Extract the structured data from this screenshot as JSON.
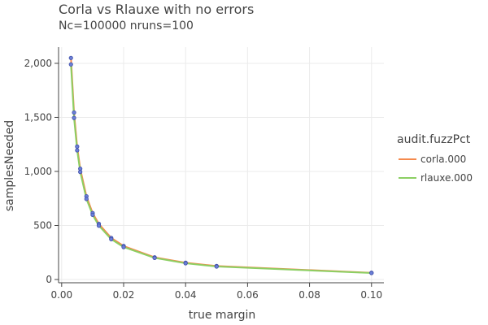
{
  "chart_data": {
    "type": "line",
    "title": "Corla vs Rlauxe with no errors",
    "subtitle": "Nc=100000 nruns=100",
    "xlabel": "true margin",
    "ylabel": "samplesNeeded",
    "xlim": [
      -0.001,
      0.104
    ],
    "ylim": [
      -30,
      2150
    ],
    "x_ticks": [
      0.0,
      0.02,
      0.04,
      0.06,
      0.08,
      0.1
    ],
    "x_tick_labels": [
      "0.00",
      "0.02",
      "0.04",
      "0.06",
      "0.08",
      "0.10"
    ],
    "y_ticks": [
      0,
      500,
      1000,
      1500,
      2000
    ],
    "y_tick_labels": [
      "0",
      "500",
      "1,000",
      "1,500",
      "2,000"
    ],
    "grid": true,
    "legend": {
      "title": "audit.fuzzPct",
      "placement": "right"
    },
    "series": [
      {
        "name": "corla.000",
        "color": "#f58a4d",
        "x": [
          0.003,
          0.004,
          0.005,
          0.006,
          0.008,
          0.01,
          0.012,
          0.016,
          0.02,
          0.03,
          0.04,
          0.05,
          0.1
        ],
        "y": [
          2050,
          1545,
          1230,
          1025,
          770,
          615,
          515,
          385,
          310,
          205,
          155,
          125,
          62
        ]
      },
      {
        "name": "rlauxe.000",
        "color": "#8ccf63",
        "x": [
          0.003,
          0.004,
          0.005,
          0.006,
          0.008,
          0.01,
          0.012,
          0.016,
          0.02,
          0.03,
          0.04,
          0.05,
          0.1
        ],
        "y": [
          1990,
          1495,
          1195,
          995,
          745,
          598,
          498,
          373,
          300,
          200,
          150,
          120,
          60
        ]
      }
    ],
    "marker_color": "#6b7fd7"
  }
}
